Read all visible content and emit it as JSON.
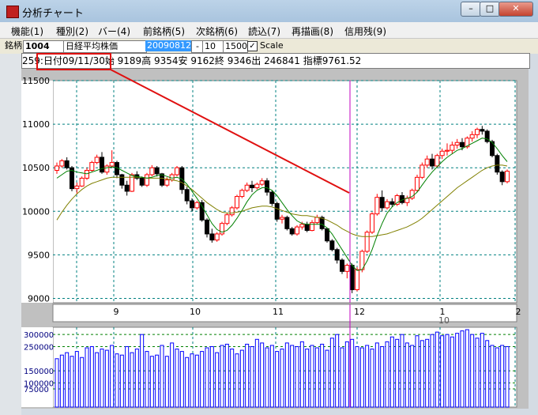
{
  "window": {
    "title": "分析チャート",
    "min": "–",
    "max": "□",
    "close": "✕"
  },
  "menu": [
    {
      "label": "機能(1)"
    },
    {
      "label": "種別(2)"
    },
    {
      "label": "バー(4)"
    },
    {
      "label": "前銘柄(5)"
    },
    {
      "label": "次銘柄(6)"
    },
    {
      "label": "読込(7)"
    },
    {
      "label": "再描画(8)"
    },
    {
      "label": "信用残(9)"
    }
  ],
  "toolbar": {
    "stock_label": "銘柄",
    "code": "1004",
    "name": "日経平均株価",
    "date": "20090812",
    "dash": "-",
    "count": "10",
    "bars": "1500",
    "scale_label": "Scale",
    "scale_checked": true
  },
  "info": {
    "text": "259:日付09/11/30始 9189高 9354安 9162終 9346出 246841 指標9761.52"
  },
  "chart_data": {
    "type": "candlestick",
    "price_ticks": [
      "11500",
      "11000",
      "10500",
      "10000",
      "9500",
      "9000"
    ],
    "price_range": [
      8950,
      11500
    ],
    "month_labels": [
      "9",
      "10",
      "11",
      "12",
      "1",
      "2"
    ],
    "year_label": "10",
    "volume_ticks": [
      "300000",
      "250000",
      "150000",
      "100000",
      "75000"
    ],
    "volume_range": [
      0,
      330000
    ],
    "colors": {
      "up": "#ff0000",
      "down": "#000000",
      "ma_short": "#008000",
      "ma_long": "#808000",
      "cursor": "#c000c0",
      "grid": "#008080",
      "volume": "#0000ff",
      "annotation": "#e01010"
    },
    "candles": [
      [
        10470,
        10560,
        10430,
        10520
      ],
      [
        10520,
        10600,
        10500,
        10580
      ],
      [
        10580,
        10620,
        10480,
        10500
      ],
      [
        10500,
        10520,
        10230,
        10260
      ],
      [
        10260,
        10330,
        10200,
        10290
      ],
      [
        10290,
        10400,
        10280,
        10380
      ],
      [
        10380,
        10500,
        10360,
        10470
      ],
      [
        10470,
        10580,
        10450,
        10560
      ],
      [
        10560,
        10650,
        10540,
        10620
      ],
      [
        10620,
        10680,
        10430,
        10450
      ],
      [
        10450,
        10540,
        10420,
        10520
      ],
      [
        10520,
        10700,
        10500,
        10560
      ],
      [
        10560,
        10580,
        10380,
        10420
      ],
      [
        10420,
        10430,
        10260,
        10300
      ],
      [
        10300,
        10350,
        10180,
        10230
      ],
      [
        10230,
        10440,
        10220,
        10420
      ],
      [
        10420,
        10460,
        10360,
        10380
      ],
      [
        10380,
        10400,
        10280,
        10300
      ],
      [
        10300,
        10440,
        10280,
        10420
      ],
      [
        10420,
        10530,
        10400,
        10500
      ],
      [
        10500,
        10520,
        10400,
        10430
      ],
      [
        10430,
        10440,
        10280,
        10300
      ],
      [
        10300,
        10390,
        10280,
        10360
      ],
      [
        10360,
        10440,
        10340,
        10420
      ],
      [
        10420,
        10520,
        10400,
        10500
      ],
      [
        10500,
        10520,
        10200,
        10250
      ],
      [
        10250,
        10280,
        10080,
        10120
      ],
      [
        10120,
        10150,
        10000,
        10040
      ],
      [
        10040,
        10120,
        10020,
        10100
      ],
      [
        10100,
        10130,
        9880,
        9900
      ],
      [
        9900,
        9920,
        9700,
        9740
      ],
      [
        9740,
        9800,
        9640,
        9670
      ],
      [
        9670,
        9760,
        9650,
        9740
      ],
      [
        9740,
        9880,
        9720,
        9860
      ],
      [
        9860,
        9980,
        9840,
        9960
      ],
      [
        9960,
        10060,
        9940,
        10040
      ],
      [
        10040,
        10190,
        10020,
        10170
      ],
      [
        10170,
        10260,
        10150,
        10240
      ],
      [
        10240,
        10330,
        10220,
        10300
      ],
      [
        10300,
        10350,
        10220,
        10270
      ],
      [
        10270,
        10330,
        10250,
        10310
      ],
      [
        10310,
        10380,
        10290,
        10350
      ],
      [
        10350,
        10380,
        10180,
        10220
      ],
      [
        10220,
        10240,
        10060,
        10090
      ],
      [
        10090,
        10110,
        9880,
        9910
      ],
      [
        9910,
        9960,
        9860,
        9930
      ],
      [
        9930,
        9950,
        9780,
        9800
      ],
      [
        9800,
        9820,
        9720,
        9740
      ],
      [
        9740,
        9840,
        9720,
        9820
      ],
      [
        9820,
        9880,
        9790,
        9850
      ],
      [
        9850,
        9880,
        9760,
        9780
      ],
      [
        9780,
        9900,
        9770,
        9870
      ],
      [
        9870,
        9960,
        9850,
        9930
      ],
      [
        9930,
        9950,
        9780,
        9800
      ],
      [
        9800,
        9810,
        9640,
        9660
      ],
      [
        9660,
        9680,
        9540,
        9560
      ],
      [
        9560,
        9580,
        9400,
        9440
      ],
      [
        9440,
        9460,
        9280,
        9310
      ],
      [
        9310,
        9400,
        9230,
        9380
      ],
      [
        9380,
        9400,
        9060,
        9100
      ],
      [
        9100,
        9360,
        9080,
        9330
      ],
      [
        9330,
        9560,
        9300,
        9540
      ],
      [
        9540,
        9780,
        9520,
        9760
      ],
      [
        9760,
        9990,
        9740,
        9970
      ],
      [
        9970,
        10200,
        9950,
        10160
      ],
      [
        10160,
        10240,
        10000,
        10040
      ],
      [
        10040,
        10140,
        10020,
        10110
      ],
      [
        10110,
        10150,
        10050,
        10080
      ],
      [
        10080,
        10200,
        10060,
        10180
      ],
      [
        10180,
        10220,
        10080,
        10100
      ],
      [
        10100,
        10180,
        10060,
        10150
      ],
      [
        10150,
        10260,
        10130,
        10240
      ],
      [
        10240,
        10420,
        10220,
        10390
      ],
      [
        10390,
        10560,
        10370,
        10530
      ],
      [
        10530,
        10640,
        10500,
        10600
      ],
      [
        10600,
        10660,
        10480,
        10520
      ],
      [
        10520,
        10660,
        10500,
        10640
      ],
      [
        10640,
        10720,
        10600,
        10690
      ],
      [
        10690,
        10780,
        10640,
        10700
      ],
      [
        10700,
        10800,
        10660,
        10760
      ],
      [
        10760,
        10830,
        10720,
        10790
      ],
      [
        10790,
        10840,
        10700,
        10740
      ],
      [
        10740,
        10860,
        10720,
        10840
      ],
      [
        10840,
        10920,
        10800,
        10880
      ],
      [
        10880,
        10960,
        10840,
        10940
      ],
      [
        10940,
        10980,
        10880,
        10920
      ],
      [
        10920,
        10940,
        10780,
        10800
      ],
      [
        10800,
        10820,
        10620,
        10640
      ],
      [
        10640,
        10660,
        10420,
        10450
      ],
      [
        10450,
        10470,
        10300,
        10340
      ],
      [
        10340,
        10480,
        10320,
        10460
      ]
    ],
    "volumes": [
      200000,
      215000,
      225000,
      210000,
      230000,
      205000,
      245000,
      250000,
      225000,
      240000,
      235000,
      255000,
      220000,
      215000,
      250000,
      225000,
      240000,
      300000,
      230000,
      210000,
      215000,
      255000,
      210000,
      265000,
      240000,
      230000,
      205000,
      220000,
      215000,
      230000,
      245000,
      250000,
      225000,
      255000,
      260000,
      240000,
      220000,
      235000,
      260000,
      250000,
      280000,
      265000,
      245000,
      255000,
      230000,
      240000,
      265000,
      255000,
      250000,
      270000,
      240000,
      255000,
      245000,
      260000,
      235000,
      285000,
      300000,
      245000,
      270000,
      280000,
      250000,
      245000,
      255000,
      240000,
      265000,
      250000,
      270000,
      290000,
      280000,
      300000,
      265000,
      255000,
      295000,
      275000,
      280000,
      300000,
      310000,
      295000,
      300000,
      290000,
      305000,
      315000,
      320000,
      300000,
      285000,
      305000,
      275000,
      255000,
      245000,
      255000,
      250000
    ],
    "ma_short": [
      10380,
      10420,
      10460,
      10470,
      10450,
      10440,
      10430,
      10450,
      10470,
      10490,
      10500,
      10510,
      10500,
      10470,
      10440,
      10410,
      10400,
      10390,
      10380,
      10390,
      10410,
      10420,
      10400,
      10380,
      10390,
      10370,
      10310,
      10230,
      10150,
      10060,
      9960,
      9860,
      9790,
      9760,
      9780,
      9840,
      9920,
      10010,
      10110,
      10190,
      10240,
      10270,
      10270,
      10240,
      10180,
      10100,
      10020,
      9950,
      9890,
      9860,
      9850,
      9850,
      9850,
      9850,
      9810,
      9740,
      9650,
      9560,
      9470,
      9380,
      9320,
      9330,
      9430,
      9560,
      9720,
      9860,
      9980,
      10050,
      10100,
      10130,
      10150,
      10170,
      10220,
      10300,
      10380,
      10450,
      10510,
      10570,
      10620,
      10660,
      10700,
      10720,
      10750,
      10780,
      10810,
      10840,
      10830,
      10790,
      10720,
      10640,
      10570
    ],
    "ma_long": [
      9900,
      9990,
      10070,
      10140,
      10200,
      10250,
      10290,
      10320,
      10340,
      10360,
      10380,
      10390,
      10390,
      10390,
      10390,
      10390,
      10390,
      10390,
      10380,
      10380,
      10380,
      10380,
      10370,
      10360,
      10350,
      10330,
      10290,
      10250,
      10200,
      10150,
      10100,
      10060,
      10020,
      9990,
      9980,
      9980,
      9990,
      10000,
      10020,
      10040,
      10050,
      10060,
      10060,
      10050,
      10030,
      10010,
      9990,
      9970,
      9960,
      9950,
      9950,
      9940,
      9930,
      9920,
      9900,
      9870,
      9840,
      9800,
      9770,
      9740,
      9720,
      9710,
      9710,
      9710,
      9720,
      9730,
      9740,
      9760,
      9780,
      9800,
      9820,
      9850,
      9880,
      9920,
      9970,
      10020,
      10070,
      10120,
      10170,
      10220,
      10270,
      10310,
      10350,
      10390,
      10430,
      10470,
      10500,
      10520,
      10530,
      10530,
      10520
    ]
  }
}
